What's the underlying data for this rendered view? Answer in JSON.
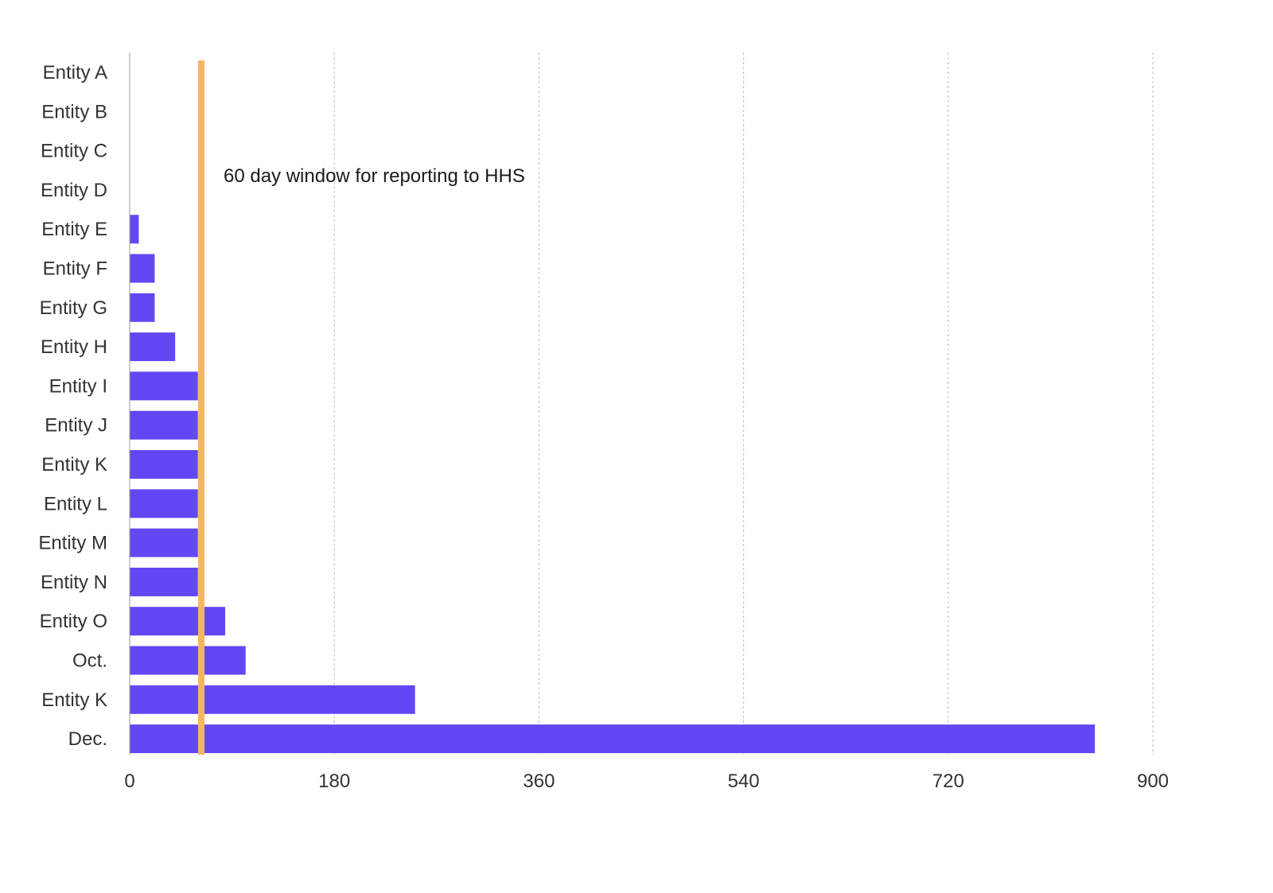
{
  "chart_data": {
    "type": "bar",
    "orientation": "horizontal",
    "categories": [
      "Entity A",
      "Entity B",
      "Entity C",
      "Entity D",
      "Entity E",
      "Entity F",
      "Entity G",
      "Entity H",
      "Entity I",
      "Entity J",
      "Entity K",
      "Entity L",
      "Entity M",
      "Entity N",
      "Entity O",
      "Oct.",
      "Entity K",
      "Dec."
    ],
    "values": [
      0,
      0,
      0,
      0,
      8,
      22,
      22,
      40,
      60,
      60,
      60,
      60,
      60,
      60,
      84,
      102,
      251,
      849
    ],
    "xlim": [
      0,
      900
    ],
    "xticks": [
      0,
      180,
      360,
      540,
      720,
      900
    ],
    "xtick_labels": [
      "0",
      "180",
      "360",
      "540",
      "720",
      "900"
    ],
    "grid": "vertical dashed",
    "reference_line": {
      "value": 63,
      "label": "60 day window for reporting to HHS"
    },
    "colors": {
      "bar": "#6347f5",
      "reference_line": "#f5b663",
      "grid": "#bdbdbd",
      "axis": "#9e9e9e"
    }
  }
}
